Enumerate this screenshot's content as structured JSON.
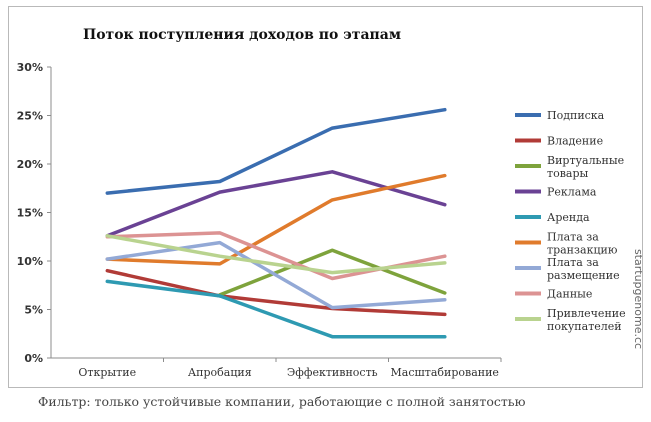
{
  "note": "Фильтр: только устойчивые компании, работающие с полной занятостью",
  "watermark": "startupgenome.cc",
  "chart_data": {
    "type": "line",
    "title": "Поток поступления доходов по этапам",
    "xlabel": "",
    "ylabel": "",
    "categories": [
      "Открытие",
      "Апробация",
      "Эффективность",
      "Масштабирование"
    ],
    "ylim": [
      0,
      30
    ],
    "yticks": [
      "0%",
      "5%",
      "10%",
      "15%",
      "20%",
      "25%",
      "30%"
    ],
    "grid": false,
    "legend_position": "right",
    "series": [
      {
        "name": "Подписка",
        "color": "#3a6db0",
        "values": [
          17.0,
          18.2,
          23.7,
          25.6
        ]
      },
      {
        "name": "Владение",
        "color": "#b13b37",
        "values": [
          9.0,
          6.4,
          5.1,
          4.5
        ]
      },
      {
        "name": "Виртуальные товары",
        "color": "#7ea33c",
        "values": [
          null,
          6.5,
          11.1,
          6.7
        ]
      },
      {
        "name": "Реклама",
        "color": "#6a4294",
        "values": [
          12.6,
          17.1,
          19.2,
          15.8
        ]
      },
      {
        "name": "Аренда",
        "color": "#2e9ab2",
        "values": [
          7.9,
          6.4,
          2.2,
          2.2
        ]
      },
      {
        "name": "Плата за транзакцию",
        "color": "#e07b2c",
        "values": [
          10.2,
          9.7,
          16.3,
          18.8
        ]
      },
      {
        "name": "Плата за размещение",
        "color": "#93a9d6",
        "values": [
          10.2,
          11.9,
          5.2,
          6.0
        ]
      },
      {
        "name": "Данные",
        "color": "#dc9393",
        "values": [
          12.5,
          12.9,
          8.2,
          10.5
        ]
      },
      {
        "name": "Привлечение покупателей",
        "color": "#b9d38f",
        "values": [
          12.6,
          10.5,
          8.8,
          9.8
        ]
      }
    ]
  }
}
